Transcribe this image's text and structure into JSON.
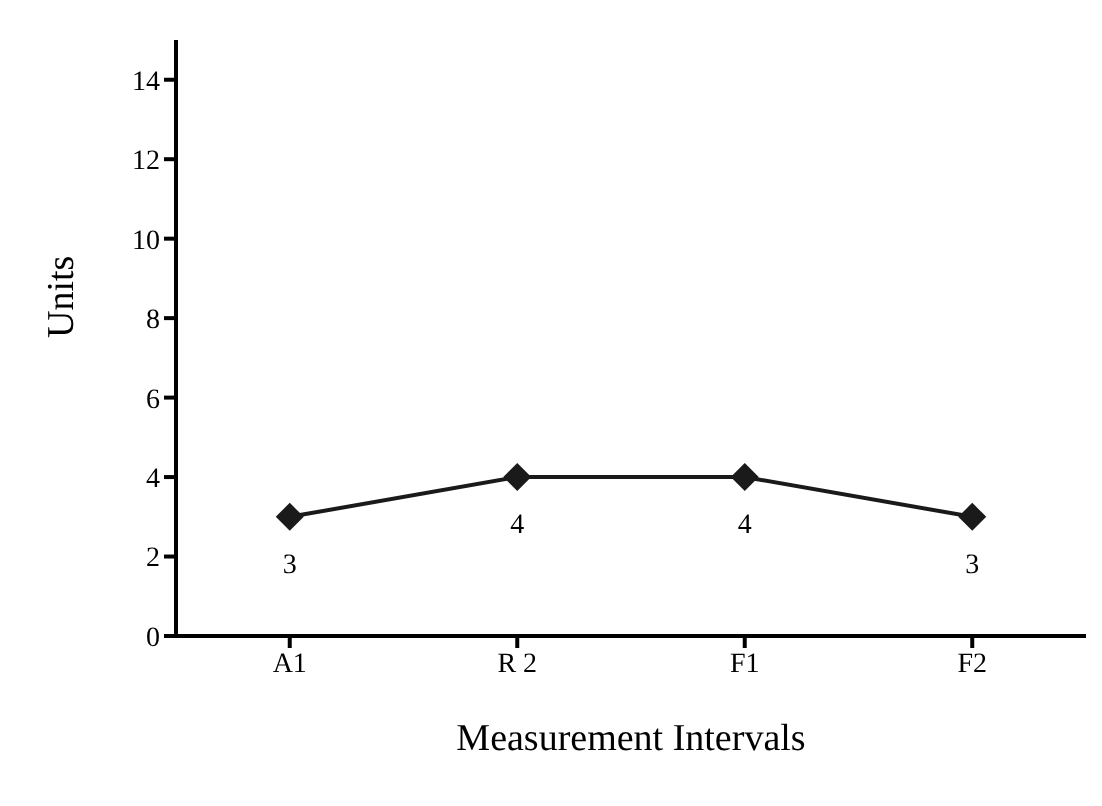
{
  "chart_data": {
    "type": "line",
    "xlabel": "Measurement Intervals",
    "ylabel": "Units",
    "categories": [
      "A1",
      "R 2",
      "F1",
      "F2"
    ],
    "series": [
      {
        "color": "#1a1a1a",
        "values": [
          3,
          4,
          4,
          3
        ]
      }
    ],
    "ylim": [
      0,
      15
    ],
    "yticks": [
      0,
      2,
      4,
      6,
      8,
      10,
      12,
      14
    ],
    "marker": "diamond",
    "data_labels": true,
    "grid": false,
    "legend": false
  }
}
